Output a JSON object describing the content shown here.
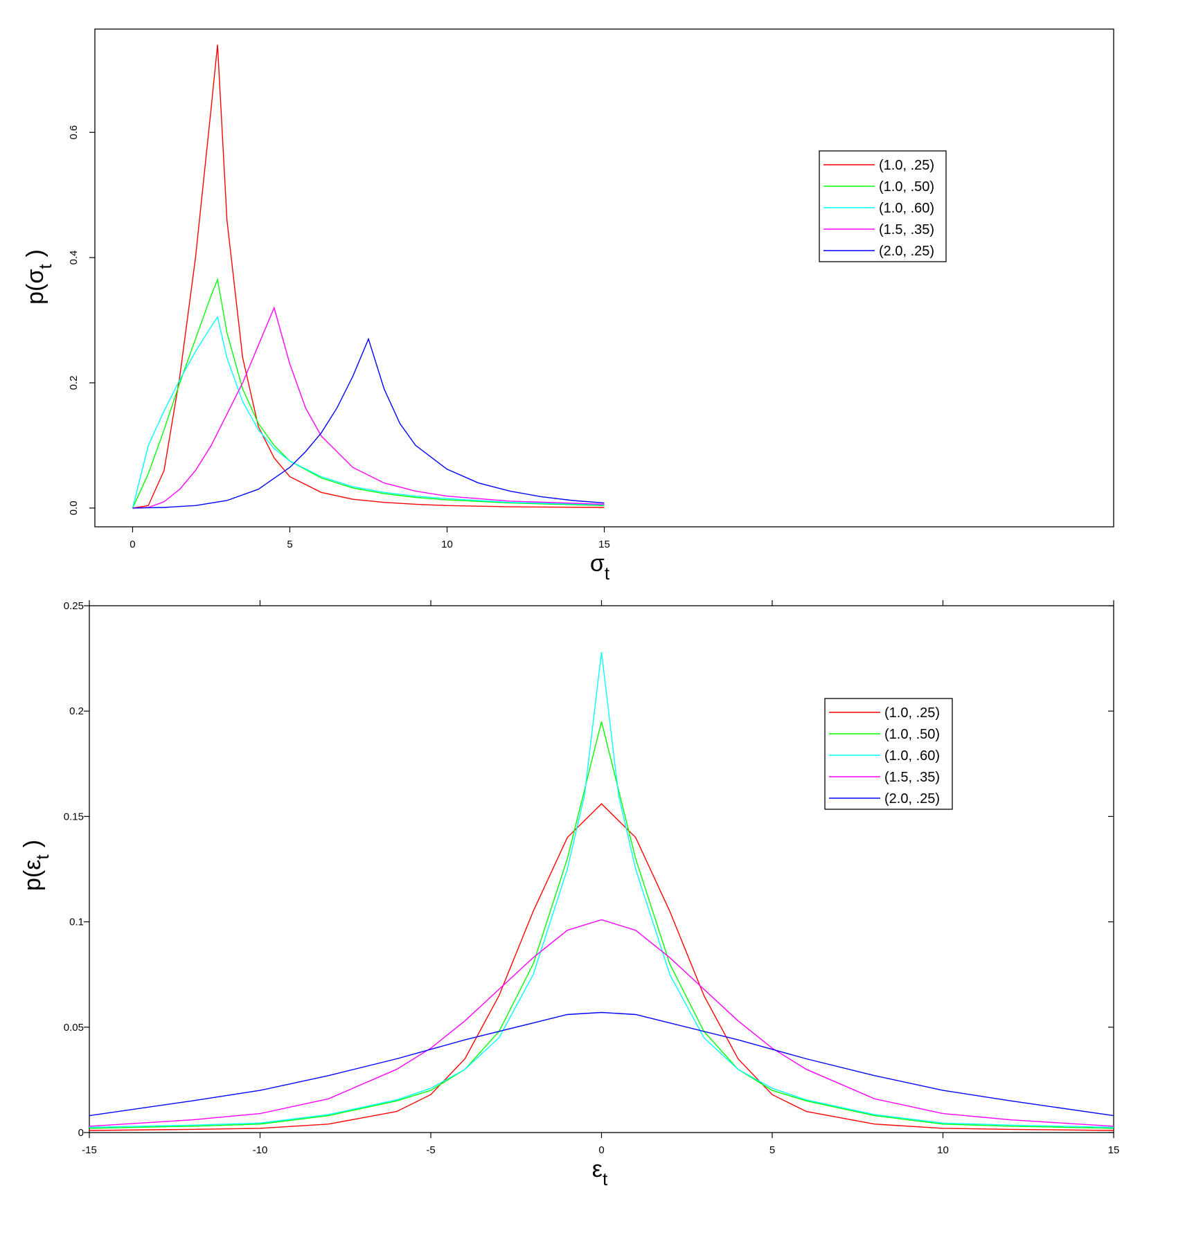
{
  "chart_data": [
    {
      "type": "line",
      "xlabel": "σ",
      "xlabel_sub": "t",
      "ylabel": "p(σ",
      "ylabel_sub": "t",
      "ylabel_close": ")",
      "xlim": [
        -1.2,
        31.2
      ],
      "ylim": [
        -0.03,
        0.765
      ],
      "xticks": [
        0,
        5,
        10,
        15
      ],
      "xtick_labels": [
        "0",
        "5",
        "10",
        "15"
      ],
      "yticks": [
        0.0,
        0.2,
        0.4,
        0.6
      ],
      "ytick_labels": [
        "0.0",
        "0.2",
        "0.4",
        "0.6"
      ],
      "grid": false,
      "legend_position": "top-right",
      "series": [
        {
          "name": "(1.0, .25)",
          "color": "#ff0000",
          "x": [
            0,
            0.5,
            1,
            1.5,
            2,
            2.5,
            2.7,
            3,
            3.5,
            4,
            4.5,
            5,
            6,
            7,
            8,
            9,
            10,
            12,
            15
          ],
          "y": [
            0,
            0.004,
            0.06,
            0.21,
            0.4,
            0.64,
            0.74,
            0.46,
            0.24,
            0.13,
            0.08,
            0.05,
            0.025,
            0.014,
            0.009,
            0.006,
            0.004,
            0.002,
            0.001
          ]
        },
        {
          "name": "(1.0, .50)",
          "color": "#00ff00",
          "x": [
            0,
            0.5,
            1,
            1.5,
            2,
            2.5,
            2.7,
            3,
            3.5,
            4,
            4.5,
            5,
            6,
            7,
            8,
            9,
            10,
            12,
            15
          ],
          "y": [
            0,
            0.055,
            0.125,
            0.2,
            0.27,
            0.34,
            0.365,
            0.28,
            0.19,
            0.135,
            0.1,
            0.075,
            0.048,
            0.032,
            0.023,
            0.017,
            0.013,
            0.008,
            0.004
          ]
        },
        {
          "name": "(1.0, .60)",
          "color": "#00ffff",
          "x": [
            0,
            0.5,
            1,
            1.5,
            2,
            2.5,
            2.7,
            3,
            3.5,
            4,
            4.5,
            5,
            6,
            7,
            8,
            9,
            10,
            12,
            15
          ],
          "y": [
            0,
            0.1,
            0.155,
            0.205,
            0.25,
            0.29,
            0.305,
            0.24,
            0.17,
            0.125,
            0.095,
            0.075,
            0.05,
            0.034,
            0.025,
            0.019,
            0.015,
            0.009,
            0.005
          ]
        },
        {
          "name": "(1.5, .35)",
          "color": "#ff00ff",
          "x": [
            0,
            0.5,
            1,
            1.5,
            2,
            2.5,
            3,
            3.5,
            4,
            4.5,
            5,
            5.5,
            6,
            7,
            8,
            9,
            10,
            12,
            15
          ],
          "y": [
            0,
            0.001,
            0.01,
            0.03,
            0.06,
            0.1,
            0.15,
            0.2,
            0.26,
            0.32,
            0.23,
            0.16,
            0.115,
            0.065,
            0.04,
            0.027,
            0.019,
            0.011,
            0.006
          ]
        },
        {
          "name": "(2.0, .25)",
          "color": "#0000ff",
          "x": [
            0,
            1,
            2,
            3,
            4,
            5,
            5.5,
            6,
            6.5,
            7,
            7.5,
            8,
            8.5,
            9,
            10,
            11,
            12,
            13,
            14,
            15
          ],
          "y": [
            0,
            0.001,
            0.004,
            0.012,
            0.03,
            0.065,
            0.09,
            0.12,
            0.16,
            0.21,
            0.27,
            0.19,
            0.135,
            0.1,
            0.062,
            0.04,
            0.027,
            0.018,
            0.012,
            0.008
          ]
        }
      ]
    },
    {
      "type": "line",
      "xlabel": "ε",
      "xlabel_sub": "t",
      "ylabel": "p(ε",
      "ylabel_sub": "t",
      "ylabel_close": ")",
      "xlim": [
        -15,
        15
      ],
      "ylim": [
        0,
        0.25
      ],
      "xticks": [
        -15,
        -10,
        -5,
        0,
        5,
        10,
        15
      ],
      "xtick_labels": [
        "-15",
        "-10",
        "-5",
        "0",
        "5",
        "10",
        "15"
      ],
      "yticks": [
        0,
        0.05,
        0.1,
        0.15,
        0.2,
        0.25
      ],
      "ytick_labels": [
        "0",
        "0.05",
        "0.1",
        "0.15",
        "0.2",
        "0.25"
      ],
      "grid": false,
      "legend_position": "top-right",
      "series": [
        {
          "name": "(1.0, .25)",
          "color": "#ff0000",
          "x": [
            -15,
            -12,
            -10,
            -8,
            -6,
            -5,
            -4,
            -3,
            -2,
            -1,
            0,
            1,
            2,
            3,
            4,
            5,
            6,
            8,
            10,
            12,
            15
          ],
          "y": [
            0.001,
            0.0015,
            0.002,
            0.004,
            0.01,
            0.018,
            0.035,
            0.065,
            0.105,
            0.14,
            0.156,
            0.14,
            0.105,
            0.065,
            0.035,
            0.018,
            0.01,
            0.004,
            0.002,
            0.0015,
            0.001
          ]
        },
        {
          "name": "(1.0, .50)",
          "color": "#00ff00",
          "x": [
            -15,
            -12,
            -10,
            -8,
            -6,
            -5,
            -4,
            -3,
            -2,
            -1,
            0,
            1,
            2,
            3,
            4,
            5,
            6,
            8,
            10,
            12,
            15
          ],
          "y": [
            0.002,
            0.003,
            0.004,
            0.008,
            0.015,
            0.02,
            0.03,
            0.048,
            0.08,
            0.13,
            0.195,
            0.13,
            0.08,
            0.048,
            0.03,
            0.02,
            0.015,
            0.008,
            0.004,
            0.003,
            0.002
          ]
        },
        {
          "name": "(1.0, .60)",
          "color": "#00ffff",
          "x": [
            -15,
            -12,
            -10,
            -8,
            -6,
            -5,
            -4,
            -3,
            -2,
            -1,
            -0.5,
            0,
            0.5,
            1,
            2,
            3,
            4,
            5,
            6,
            8,
            10,
            12,
            15
          ],
          "y": [
            0.0025,
            0.0035,
            0.0045,
            0.0085,
            0.0155,
            0.021,
            0.03,
            0.045,
            0.075,
            0.125,
            0.16,
            0.228,
            0.16,
            0.125,
            0.075,
            0.045,
            0.03,
            0.021,
            0.0155,
            0.0085,
            0.0045,
            0.0035,
            0.0025
          ]
        },
        {
          "name": "(1.5, .35)",
          "color": "#ff00ff",
          "x": [
            -15,
            -12,
            -10,
            -8,
            -6,
            -5,
            -4,
            -3,
            -2,
            -1,
            0,
            1,
            2,
            3,
            4,
            5,
            6,
            8,
            10,
            12,
            15
          ],
          "y": [
            0.003,
            0.006,
            0.009,
            0.016,
            0.03,
            0.04,
            0.053,
            0.068,
            0.083,
            0.096,
            0.101,
            0.096,
            0.083,
            0.068,
            0.053,
            0.04,
            0.03,
            0.016,
            0.009,
            0.006,
            0.003
          ]
        },
        {
          "name": "(2.0, .25)",
          "color": "#0000ff",
          "x": [
            -15,
            -12,
            -10,
            -8,
            -6,
            -4,
            -2,
            -1,
            0,
            1,
            2,
            4,
            6,
            8,
            10,
            12,
            15
          ],
          "y": [
            0.008,
            0.015,
            0.02,
            0.027,
            0.035,
            0.044,
            0.052,
            0.056,
            0.057,
            0.056,
            0.052,
            0.044,
            0.035,
            0.027,
            0.02,
            0.015,
            0.008
          ]
        }
      ]
    }
  ]
}
